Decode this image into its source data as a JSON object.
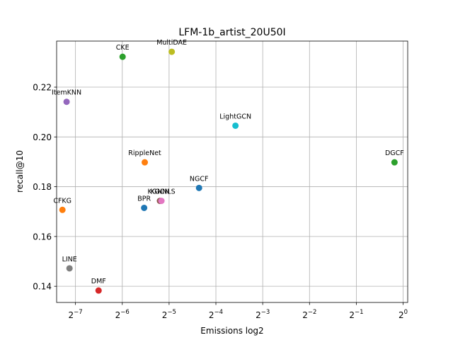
{
  "chart_data": {
    "type": "scatter",
    "title": "LFM-1b_artist_20U50I",
    "xlabel": "Emissions log2",
    "ylabel": "recall@10",
    "x_scale": "log2",
    "xlim": [
      0.00591,
      1.07
    ],
    "ylim": [
      0.1335,
      0.2385
    ],
    "grid": true,
    "x_ticks": [
      {
        "value": 0.0078125,
        "base": "2",
        "exp": "−7"
      },
      {
        "value": 0.015625,
        "base": "2",
        "exp": "−6"
      },
      {
        "value": 0.03125,
        "base": "2",
        "exp": "−5"
      },
      {
        "value": 0.0625,
        "base": "2",
        "exp": "−4"
      },
      {
        "value": 0.125,
        "base": "2",
        "exp": "−3"
      },
      {
        "value": 0.25,
        "base": "2",
        "exp": "−2"
      },
      {
        "value": 0.5,
        "base": "2",
        "exp": "−1"
      },
      {
        "value": 1,
        "base": "2",
        "exp": "0"
      }
    ],
    "y_ticks": [
      {
        "value": 0.14,
        "label": "0.14"
      },
      {
        "value": 0.16,
        "label": "0.16"
      },
      {
        "value": 0.18,
        "label": "0.18"
      },
      {
        "value": 0.2,
        "label": "0.20"
      },
      {
        "value": 0.22,
        "label": "0.22"
      }
    ],
    "points": [
      {
        "label": "CKE",
        "x": 0.0157,
        "y": 0.2322,
        "color": "#2ca02c"
      },
      {
        "label": "MultiDAE",
        "x": 0.0325,
        "y": 0.2342,
        "color": "#bcbd22"
      },
      {
        "label": "ItemKNN",
        "x": 0.00685,
        "y": 0.2141,
        "color": "#9467bd"
      },
      {
        "label": "LightGCN",
        "x": 0.0835,
        "y": 0.2045,
        "color": "#17becf"
      },
      {
        "label": "DGCF",
        "x": 0.88,
        "y": 0.1898,
        "color": "#2ca02c"
      },
      {
        "label": "RippleNet",
        "x": 0.0218,
        "y": 0.1898,
        "color": "#ff7f0e"
      },
      {
        "label": "NGCF",
        "x": 0.0487,
        "y": 0.1795,
        "color": "#1f77b4"
      },
      {
        "label": "KGCN",
        "x": 0.0273,
        "y": 0.1743,
        "color": "#8c564b"
      },
      {
        "label": "KGNNLS",
        "x": 0.0279,
        "y": 0.1743,
        "color": "#e377c2"
      },
      {
        "label": "BPR",
        "x": 0.0216,
        "y": 0.1715,
        "color": "#1f77b4"
      },
      {
        "label": "CFKG",
        "x": 0.00644,
        "y": 0.1707,
        "color": "#ff7f0e"
      },
      {
        "label": "LINE",
        "x": 0.00715,
        "y": 0.1472,
        "color": "#7f7f7f"
      },
      {
        "label": "DMF",
        "x": 0.011,
        "y": 0.1383,
        "color": "#d62728"
      }
    ]
  }
}
